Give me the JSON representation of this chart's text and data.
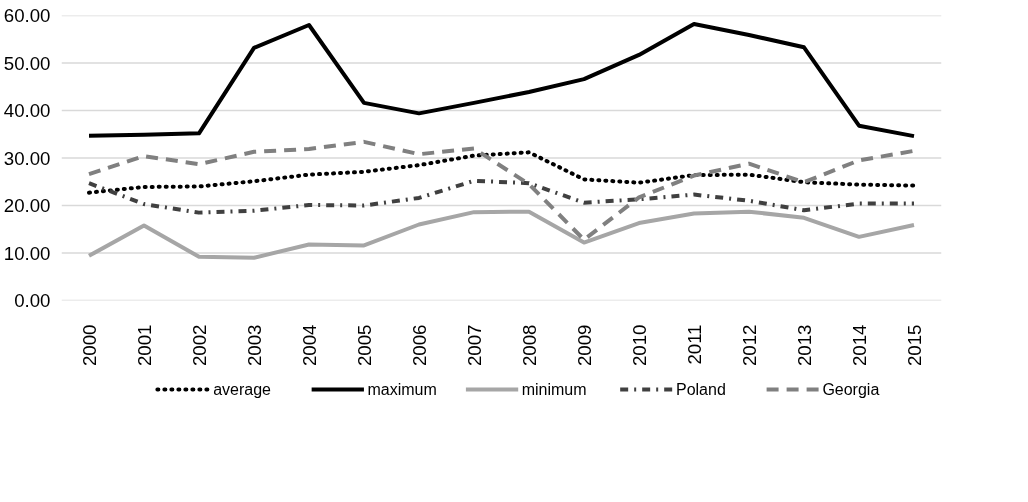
{
  "chart_data": {
    "type": "line",
    "categories": [
      "2000",
      "2001",
      "2002",
      "2003",
      "2004",
      "2005",
      "2006",
      "2007",
      "2008",
      "2009",
      "2010",
      "2011",
      "2012",
      "2013",
      "2014",
      "2015"
    ],
    "ylim": [
      0,
      60
    ],
    "yticks": [
      {
        "value": 0,
        "label": "0.00"
      },
      {
        "value": 10,
        "label": "10.00"
      },
      {
        "value": 20,
        "label": "20.00"
      },
      {
        "value": 30,
        "label": "30.00"
      },
      {
        "value": 40,
        "label": "40.00"
      },
      {
        "value": 50,
        "label": "50.00"
      },
      {
        "value": 60,
        "label": "60.00"
      }
    ],
    "grid": "y",
    "legend": "bottom",
    "marker": "none",
    "series": [
      {
        "name": "average",
        "color": "#000000",
        "line_style": "dotted",
        "values": [
          22.7,
          23.9,
          24.0,
          25.1,
          26.5,
          27.1,
          28.5,
          30.5,
          31.2,
          25.5,
          24.8,
          26.4,
          26.5,
          24.9,
          24.4,
          24.2
        ]
      },
      {
        "name": "maximum",
        "color": "#000000",
        "line_style": "solid",
        "values": [
          34.7,
          34.9,
          35.2,
          53.2,
          58.0,
          41.6,
          39.4,
          41.6,
          43.9,
          46.6,
          51.7,
          58.2,
          55.9,
          53.3,
          36.8,
          34.6
        ]
      },
      {
        "name": "minimum",
        "color": "#a6a6a6",
        "line_style": "solid",
        "values": [
          9.4,
          15.8,
          9.2,
          9.0,
          11.8,
          11.6,
          16.0,
          18.6,
          18.7,
          12.2,
          16.3,
          18.3,
          18.7,
          17.4,
          13.4,
          15.9
        ]
      },
      {
        "name": "Poland",
        "color": "#404040",
        "line_style": "dashdot",
        "values": [
          24.7,
          20.3,
          18.5,
          18.9,
          20.1,
          20.0,
          21.6,
          25.2,
          24.7,
          20.6,
          21.3,
          22.3,
          21.0,
          19.0,
          20.4,
          20.4
        ]
      },
      {
        "name": "Georgia",
        "color": "#808080",
        "line_style": "dashed",
        "values": [
          26.6,
          30.4,
          28.7,
          31.3,
          31.9,
          33.4,
          30.8,
          32.0,
          24.5,
          12.8,
          21.7,
          26.3,
          28.8,
          24.9,
          29.5,
          31.5
        ]
      }
    ]
  }
}
